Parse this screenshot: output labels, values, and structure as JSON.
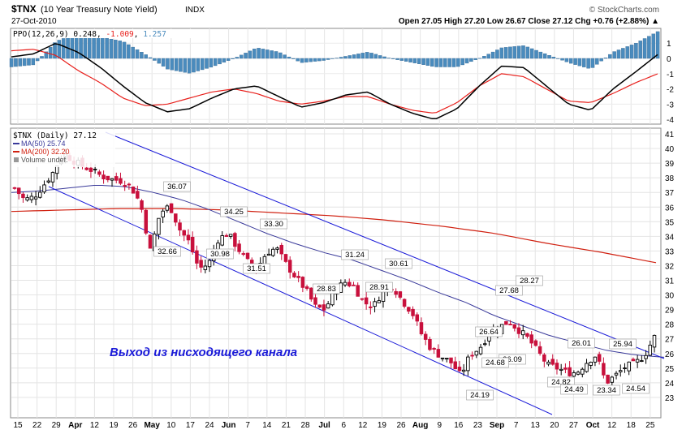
{
  "header": {
    "symbol": "$TNX",
    "name": "(10 Year Treasury Note Yield)",
    "exchange": "INDX",
    "date": "27-Oct-2010",
    "copyright": "© StockCharts.com",
    "ohlc_text": "Open 27.05  High 27.20  Low 26.67  Close 27.12  Chg +0.76 (+2.88%) ▲"
  },
  "ppo_panel": {
    "label": "PPO(12,26,9)",
    "value": "0.248",
    "signal": "-1.009",
    "histogram": "1.257",
    "y_ticks": [
      "1",
      "0",
      "-1",
      "-2",
      "-3",
      "-4"
    ],
    "colors": {
      "ppo": "#000000",
      "signal": "#e8201c",
      "histogram": "#4a8bbd"
    }
  },
  "price_panel": {
    "label": "$TNX (Daily) 27.12",
    "legend": [
      {
        "text": "MA(50) 25.74",
        "color": "#3a3a9a"
      },
      {
        "text": "MA(200) 32.20",
        "color": "#d02010"
      },
      {
        "text": "Volume undef.",
        "color": "#555555"
      }
    ],
    "annotation": "Выход из нисходящего канала",
    "annotation_color": "#1a1ad8",
    "y_ticks": [
      "41",
      "40",
      "39",
      "38",
      "37",
      "36",
      "35",
      "34",
      "33",
      "32",
      "31",
      "30",
      "29",
      "28",
      "27",
      "26",
      "25",
      "24",
      "23"
    ],
    "channel_color": "#1a1ad8",
    "up_color": "#000000",
    "down_color": "#c8103c"
  },
  "x_axis": {
    "labels": [
      "15",
      "22",
      "29",
      "Apr",
      "12",
      "19",
      "26",
      "May",
      "10",
      "17",
      "24",
      "Jun",
      "7",
      "14",
      "21",
      "28",
      "Jul",
      "6",
      "12",
      "19",
      "26",
      "Aug",
      "9",
      "16",
      "23",
      "Sep",
      "7",
      "13",
      "20",
      "27",
      "Oct",
      "12",
      "18",
      "25"
    ]
  },
  "chart_data": {
    "type": "candlestick",
    "title": "$TNX (10 Year Treasury Note Yield) INDX",
    "ylim": [
      22.5,
      41.2
    ],
    "price_labels": [
      "36.07",
      "32.66",
      "34.25",
      "30.98",
      "33.30",
      "31.51",
      "31.24",
      "28.83",
      "30.61",
      "28.91",
      "26.64",
      "24.19",
      "27.68",
      "26.09",
      "28.27",
      "24.68",
      "26.01",
      "24.82",
      "24.49",
      "25.94",
      "23.34",
      "24.54"
    ],
    "close_path": [
      37.3,
      36.5,
      36.7,
      37.5,
      38.4,
      39.7,
      39.2,
      38.8,
      38.5,
      38.1,
      37.9,
      37.8,
      37.4,
      36.2,
      33.0,
      35.6,
      36.1,
      34.5,
      33.6,
      31.8,
      32.1,
      33.8,
      34.2,
      33.2,
      32.3,
      31.8,
      32.9,
      33.2,
      32.1,
      31.2,
      30.4,
      29.2,
      29.0,
      30.2,
      30.9,
      30.6,
      29.5,
      29.2,
      30.3,
      30.6,
      29.6,
      28.8,
      27.3,
      26.3,
      25.8,
      25.4,
      24.5,
      25.9,
      26.4,
      27.4,
      27.8,
      28.2,
      27.6,
      27.0,
      26.1,
      25.2,
      25.0,
      24.7,
      24.7,
      25.4,
      25.9,
      24.0,
      24.5,
      25.1,
      25.3,
      25.9,
      27.12
    ],
    "ma50_path": [
      37.0,
      37.1,
      37.3,
      37.5,
      37.4,
      37.0,
      36.5,
      35.8,
      35.0,
      34.2,
      33.5,
      32.9,
      32.4,
      31.7,
      31.0,
      30.2,
      29.5,
      28.6,
      27.9,
      27.2,
      26.7,
      26.2,
      25.9,
      25.74
    ],
    "ma200_path": [
      35.7,
      35.8,
      35.9,
      35.9,
      35.8,
      35.6,
      35.4,
      35.1,
      34.7,
      34.2,
      33.5,
      32.9,
      32.2
    ],
    "ppo_path": [
      0.1,
      0.3,
      1.0,
      0.4,
      -0.6,
      -1.8,
      -2.9,
      -3.5,
      -3.3,
      -2.6,
      -2.0,
      -1.8,
      -2.5,
      -3.2,
      -2.9,
      -2.4,
      -2.2,
      -3.0,
      -3.6,
      -4.0,
      -3.3,
      -1.8,
      -0.5,
      -0.6,
      -1.8,
      -3.0,
      -3.4,
      -2.0,
      -0.9,
      0.248
    ],
    "signal_path": [
      0.5,
      0.6,
      0.2,
      -0.8,
      -1.6,
      -2.6,
      -3.1,
      -3.0,
      -2.6,
      -2.2,
      -2.0,
      -2.3,
      -2.8,
      -3.0,
      -2.8,
      -2.5,
      -2.5,
      -3.0,
      -3.4,
      -3.6,
      -2.9,
      -1.8,
      -1.0,
      -1.2,
      -2.0,
      -2.8,
      -2.9,
      -2.3,
      -1.6,
      -1.009
    ]
  }
}
